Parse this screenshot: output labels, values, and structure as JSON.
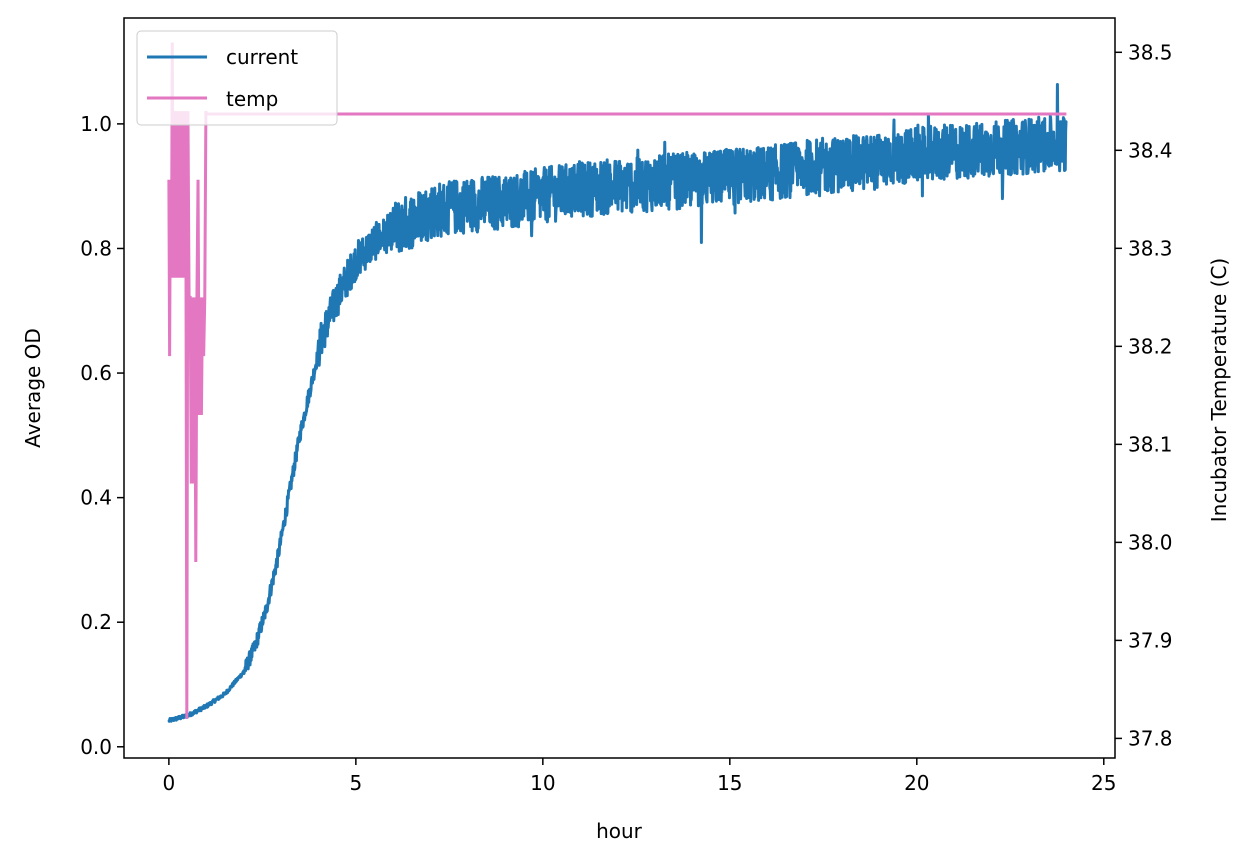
{
  "chart_data": {
    "type": "line",
    "xlabel": "hour",
    "ylabel_left": "Average OD",
    "ylabel_right": "Incubator Temperature (C)",
    "xlim": [
      -1.2,
      25.3
    ],
    "ylim_left": [
      -0.018,
      1.17
    ],
    "ylim_right": [
      37.78,
      38.535
    ],
    "x_ticks": [
      0,
      5,
      10,
      15,
      20,
      25
    ],
    "y_ticks_left": [
      0.0,
      0.2,
      0.4,
      0.6,
      0.8,
      1.0
    ],
    "y_ticks_right": [
      37.8,
      37.9,
      38.0,
      38.1,
      38.2,
      38.3,
      38.4,
      38.5
    ],
    "grid": false,
    "legend": {
      "placement": "upper-left",
      "entries": [
        "current",
        "temp"
      ]
    },
    "series": [
      {
        "name": "current",
        "axis": "left",
        "color": "#1f77b4",
        "noise": "high-frequency fluctuation around trend, amplitude grows to ~0.05",
        "x": [
          0,
          0.5,
          1,
          1.5,
          2,
          2.3,
          2.6,
          2.9,
          3.2,
          3.5,
          3.8,
          4.1,
          4.5,
          5,
          5.5,
          6,
          6.5,
          7,
          8,
          9,
          10,
          11,
          12,
          13,
          14,
          15,
          16,
          17,
          18,
          19,
          20,
          21,
          22,
          23,
          24
        ],
        "y": [
          0.042,
          0.05,
          0.065,
          0.085,
          0.12,
          0.16,
          0.22,
          0.3,
          0.4,
          0.5,
          0.58,
          0.66,
          0.72,
          0.78,
          0.81,
          0.83,
          0.845,
          0.86,
          0.87,
          0.875,
          0.885,
          0.895,
          0.9,
          0.905,
          0.91,
          0.915,
          0.92,
          0.93,
          0.935,
          0.94,
          0.95,
          0.955,
          0.96,
          0.965,
          0.97
        ]
      },
      {
        "name": "temp",
        "axis": "right",
        "color": "#e377c2",
        "x": [
          0.0,
          0.02,
          0.04,
          0.07,
          0.09,
          0.12,
          0.15,
          0.18,
          0.21,
          0.24,
          0.27,
          0.3,
          0.33,
          0.36,
          0.39,
          0.42,
          0.45,
          0.48,
          0.51,
          0.54,
          0.57,
          0.6,
          0.63,
          0.66,
          0.69,
          0.72,
          0.75,
          0.78,
          0.81,
          0.84,
          0.87,
          0.9,
          0.93,
          0.96,
          0.99,
          1.0,
          24.0
        ],
        "y": [
          38.37,
          38.19,
          38.37,
          38.27,
          38.51,
          38.27,
          38.44,
          38.27,
          38.44,
          38.27,
          38.44,
          38.27,
          38.44,
          38.27,
          38.44,
          38.27,
          38.44,
          37.82,
          38.44,
          38.25,
          38.25,
          38.06,
          38.25,
          38.06,
          38.25,
          37.98,
          38.25,
          38.37,
          38.13,
          38.25,
          38.13,
          38.25,
          38.19,
          38.25,
          38.44,
          38.437,
          38.437
        ]
      }
    ]
  }
}
